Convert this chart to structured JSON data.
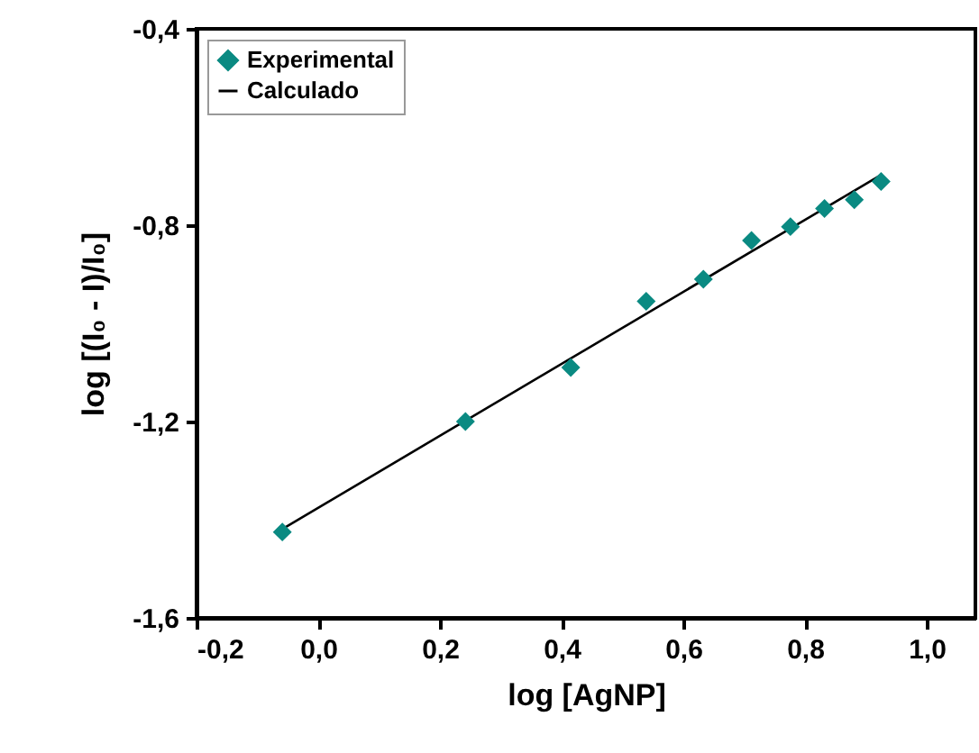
{
  "chart_data": {
    "type": "scatter",
    "xlabel": "log [AgNP]",
    "ylabel": "log [(I₀ - I)/I₀]",
    "xlim": [
      -0.2,
      1.08
    ],
    "ylim": [
      -1.6,
      -0.4
    ],
    "xticks": [
      {
        "value": -0.2,
        "label": "-0,2"
      },
      {
        "value": 0,
        "label": "0,0"
      },
      {
        "value": 0.2,
        "label": "0,2"
      },
      {
        "value": 0.4,
        "label": "0,4"
      },
      {
        "value": 0.6,
        "label": "0,6"
      },
      {
        "value": 0.8,
        "label": "0,8"
      },
      {
        "value": 1.0,
        "label": "1,0"
      }
    ],
    "yticks": [
      {
        "value": -1.6,
        "label": "-1,6"
      },
      {
        "value": -1.2,
        "label": "-1,2"
      },
      {
        "value": -0.8,
        "label": "-0,8"
      },
      {
        "value": -0.4,
        "label": "-0,4"
      }
    ],
    "grid": false,
    "legend": "top left",
    "series": [
      {
        "name": "Experimental",
        "marker": "diamond",
        "color": "#0a8a82",
        "x": [
          -0.059,
          0.242,
          0.415,
          0.539,
          0.633,
          0.712,
          0.776,
          0.832,
          0.881,
          0.925
        ],
        "values": [
          -1.425,
          -1.2,
          -1.09,
          -0.955,
          -0.91,
          -0.831,
          -0.803,
          -0.766,
          -0.748,
          -0.711
        ]
      },
      {
        "name": "Calculado",
        "type": "line",
        "line_style": "solid",
        "color": "#000000",
        "x": [
          -0.059,
          0.927
        ],
        "values": [
          -1.419,
          -0.696
        ]
      }
    ]
  }
}
